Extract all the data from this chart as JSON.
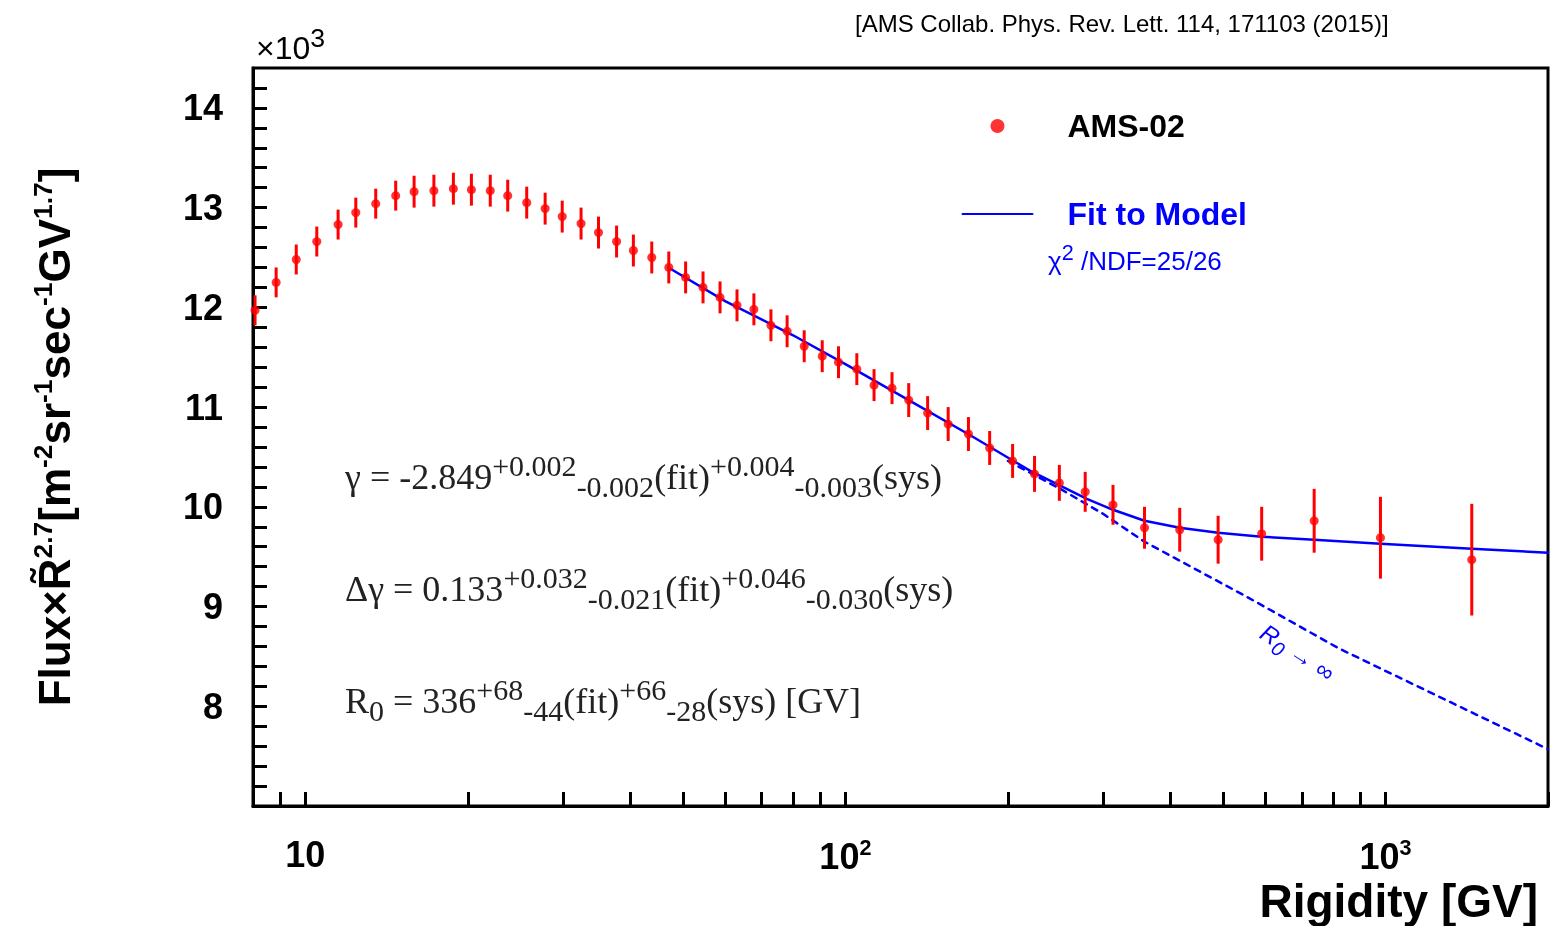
{
  "chart_data": {
    "type": "scatter",
    "xlabel": "Rigidity [GV]",
    "ylabel": "Flux×R̃$^{2.7}$[m$^{-2}$sr$^{-1}$sec$^{-1}$GV$^{1.7}$]",
    "log": "x",
    "grid": false,
    "legend": "top right",
    "xlim": [
      8,
      2000
    ],
    "ylim": [
      7,
      14.4
    ],
    "xticks": [
      {
        "value": 8,
        "label": null
      },
      {
        "value": 9,
        "label": null
      },
      10,
      {
        "value": 20,
        "label": null
      },
      {
        "value": 30,
        "label": null
      },
      {
        "value": 40,
        "label": null
      },
      {
        "value": 50,
        "label": null
      },
      {
        "value": 60,
        "label": null
      },
      {
        "value": 70,
        "label": null
      },
      {
        "value": 80,
        "label": null
      },
      {
        "value": 90,
        "label": null
      },
      {
        "value": 100,
        "label": "10$^{2}$"
      },
      {
        "value": 200,
        "label": null
      },
      {
        "value": 300,
        "label": null
      },
      {
        "value": 400,
        "label": null
      },
      {
        "value": 500,
        "label": null
      },
      {
        "value": 600,
        "label": null
      },
      {
        "value": 700,
        "label": null
      },
      {
        "value": 800,
        "label": null
      },
      {
        "value": 900,
        "label": null
      },
      {
        "value": 1000,
        "label": "10$^{3}$"
      },
      {
        "value": 2000,
        "label": null
      }
    ],
    "yticks": [
      {
        "value": 7.2,
        "label": null
      },
      {
        "value": 7.4,
        "label": null
      },
      {
        "value": 7.6,
        "label": null
      },
      {
        "value": 7.8,
        "label": null
      },
      8,
      {
        "value": 8.2,
        "label": null
      },
      {
        "value": 8.4,
        "label": null
      },
      {
        "value": 8.6,
        "label": null
      },
      {
        "value": 8.8,
        "label": null
      },
      9,
      {
        "value": 9.2,
        "label": null
      },
      {
        "value": 9.4,
        "label": null
      },
      {
        "value": 9.6,
        "label": null
      },
      {
        "value": 9.8,
        "label": null
      },
      10,
      {
        "value": 10.2,
        "label": null
      },
      {
        "value": 10.4,
        "label": null
      },
      {
        "value": 10.6,
        "label": null
      },
      {
        "value": 10.8,
        "label": null
      },
      11,
      {
        "value": 11.2,
        "label": null
      },
      {
        "value": 11.4,
        "label": null
      },
      {
        "value": 11.6,
        "label": null
      },
      {
        "value": 11.8,
        "label": null
      },
      12,
      {
        "value": 12.2,
        "label": null
      },
      {
        "value": 12.4,
        "label": null
      },
      {
        "value": 12.6,
        "label": null
      },
      {
        "value": 12.8,
        "label": null
      },
      13,
      {
        "value": 13.2,
        "label": null
      },
      {
        "value": 13.4,
        "label": null
      },
      {
        "value": 13.6,
        "label": null
      },
      {
        "value": 13.8,
        "label": null
      },
      14,
      {
        "value": 14.2,
        "label": null
      }
    ],
    "annotations": [
      "[AMS Collab. Phys. Rev. Lett. 114, 171103 (2015)]",
      "×10$^{3}$",
      "χ$^{2}$ /NDF=25/26",
      "γ = -2.849$^{+0.002}$$_{-0.002}$(fit)$^{+0.004}$$_{-0.003}$(sys)",
      "Δγ = 0.133$^{+0.032}$$_{-0.021}$(fit)$^{+0.046}$$_{-0.030}$(sys)",
      "R$_{0}$ = 336$^{+68}$$_{-44}$(fit)$^{+66}$$_{-28}$(sys) [GV]",
      "R$_{0}$ → ∞"
    ],
    "series": [
      {
        "name": "AMS-02",
        "type": "scatter",
        "color": "#ff0000",
        "marker": "circle",
        "x": [
          8.07,
          8.83,
          9.62,
          10.5,
          11.5,
          12.4,
          13.5,
          14.7,
          15.9,
          17.3,
          18.8,
          20.3,
          22.0,
          23.7,
          25.7,
          27.8,
          29.9,
          32.4,
          34.9,
          37.7,
          40.5,
          43.8,
          47.1,
          50.6,
          54.5,
          58.6,
          63.0,
          67.7,
          72.8,
          78.0,
          83.9,
          90.6,
          97.1,
          105,
          113,
          122,
          131,
          142,
          155,
          169,
          185,
          204,
          224,
          249,
          278,
          313,
          358,
          416,
          490,
          590,
          738,
          979,
          1445
        ],
        "values": [
          11.97,
          12.25,
          12.48,
          12.66,
          12.83,
          12.95,
          13.04,
          13.12,
          13.16,
          13.17,
          13.19,
          13.18,
          13.17,
          13.12,
          13.05,
          12.99,
          12.91,
          12.84,
          12.75,
          12.66,
          12.57,
          12.5,
          12.4,
          12.3,
          12.2,
          12.1,
          12.02,
          11.98,
          11.82,
          11.76,
          11.61,
          11.51,
          11.45,
          11.38,
          11.22,
          11.19,
          11.07,
          10.94,
          10.83,
          10.73,
          10.59,
          10.46,
          10.33,
          10.24,
          10.15,
          10.02,
          9.79,
          9.77,
          9.67,
          9.73,
          9.86,
          9.69,
          9.47
        ],
        "errors": [
          0.15,
          0.15,
          0.15,
          0.15,
          0.15,
          0.15,
          0.15,
          0.15,
          0.16,
          0.16,
          0.16,
          0.16,
          0.16,
          0.16,
          0.16,
          0.16,
          0.16,
          0.16,
          0.16,
          0.16,
          0.16,
          0.16,
          0.16,
          0.16,
          0.16,
          0.16,
          0.16,
          0.16,
          0.16,
          0.16,
          0.16,
          0.16,
          0.16,
          0.16,
          0.16,
          0.16,
          0.17,
          0.17,
          0.17,
          0.17,
          0.17,
          0.17,
          0.18,
          0.18,
          0.2,
          0.2,
          0.21,
          0.22,
          0.24,
          0.27,
          0.32,
          0.41,
          0.56
        ]
      },
      {
        "name": "Fit to Model",
        "type": "line",
        "color": "#0000ff",
        "line_style": "solid",
        "marker": "none",
        "x": [
          47,
          60,
          80,
          100,
          130,
          170,
          220,
          280,
          313,
          358,
          416,
          490,
          590,
          738,
          979,
          1445,
          2000
        ],
        "values": [
          12.4,
          12.06,
          11.72,
          11.43,
          11.08,
          10.72,
          10.36,
          10.08,
          9.97,
          9.86,
          9.79,
          9.74,
          9.7,
          9.67,
          9.63,
          9.58,
          9.54
        ]
      },
      {
        "type": "line",
        "color": "#0000ff",
        "line_style": "dashed",
        "marker": "none",
        "x": [
          200,
          250,
          300,
          358,
          557,
          820,
          2000
        ],
        "values": [
          10.46,
          10.18,
          9.93,
          9.65,
          9.09,
          8.58,
          7.57
        ]
      }
    ]
  }
}
